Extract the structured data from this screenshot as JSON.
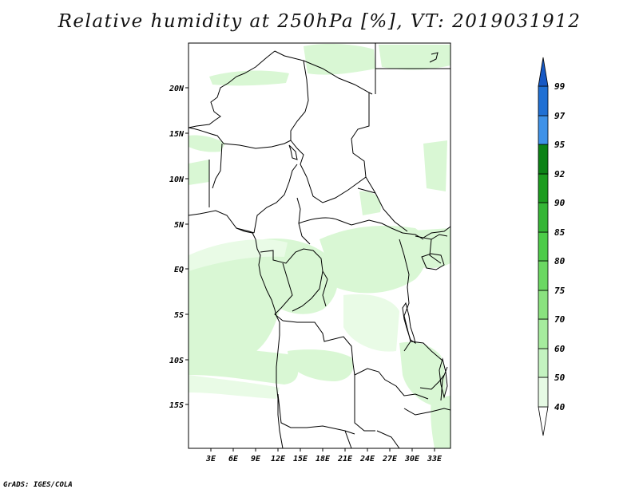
{
  "title": "Relative humidity at 250hPa [%], VT: 2019031912",
  "credit": "GrADS: IGES/COLA",
  "map": {
    "lat_labels": [
      "20N",
      "15N",
      "10N",
      "5N",
      "EQ",
      "5S",
      "10S",
      "15S"
    ],
    "lon_labels": [
      "3E",
      "6E",
      "9E",
      "12E",
      "15E",
      "18E",
      "21E",
      "24E",
      "27E",
      "30E",
      "33E"
    ]
  },
  "colorbar": {
    "labels": [
      "40",
      "50",
      "60",
      "70",
      "75",
      "80",
      "85",
      "90",
      "92",
      "95",
      "97",
      "99"
    ],
    "colors": [
      "#ffffff",
      "#e6fae4",
      "#c4f3c0",
      "#a6ec9e",
      "#8ae27f",
      "#6bd862",
      "#4dcc49",
      "#35b636",
      "#1c9c1f",
      "#0c8216",
      "#3f92e8",
      "#2070d4",
      "#1658c4"
    ]
  },
  "colors": {
    "border": "#000000",
    "frame": "#000000"
  }
}
